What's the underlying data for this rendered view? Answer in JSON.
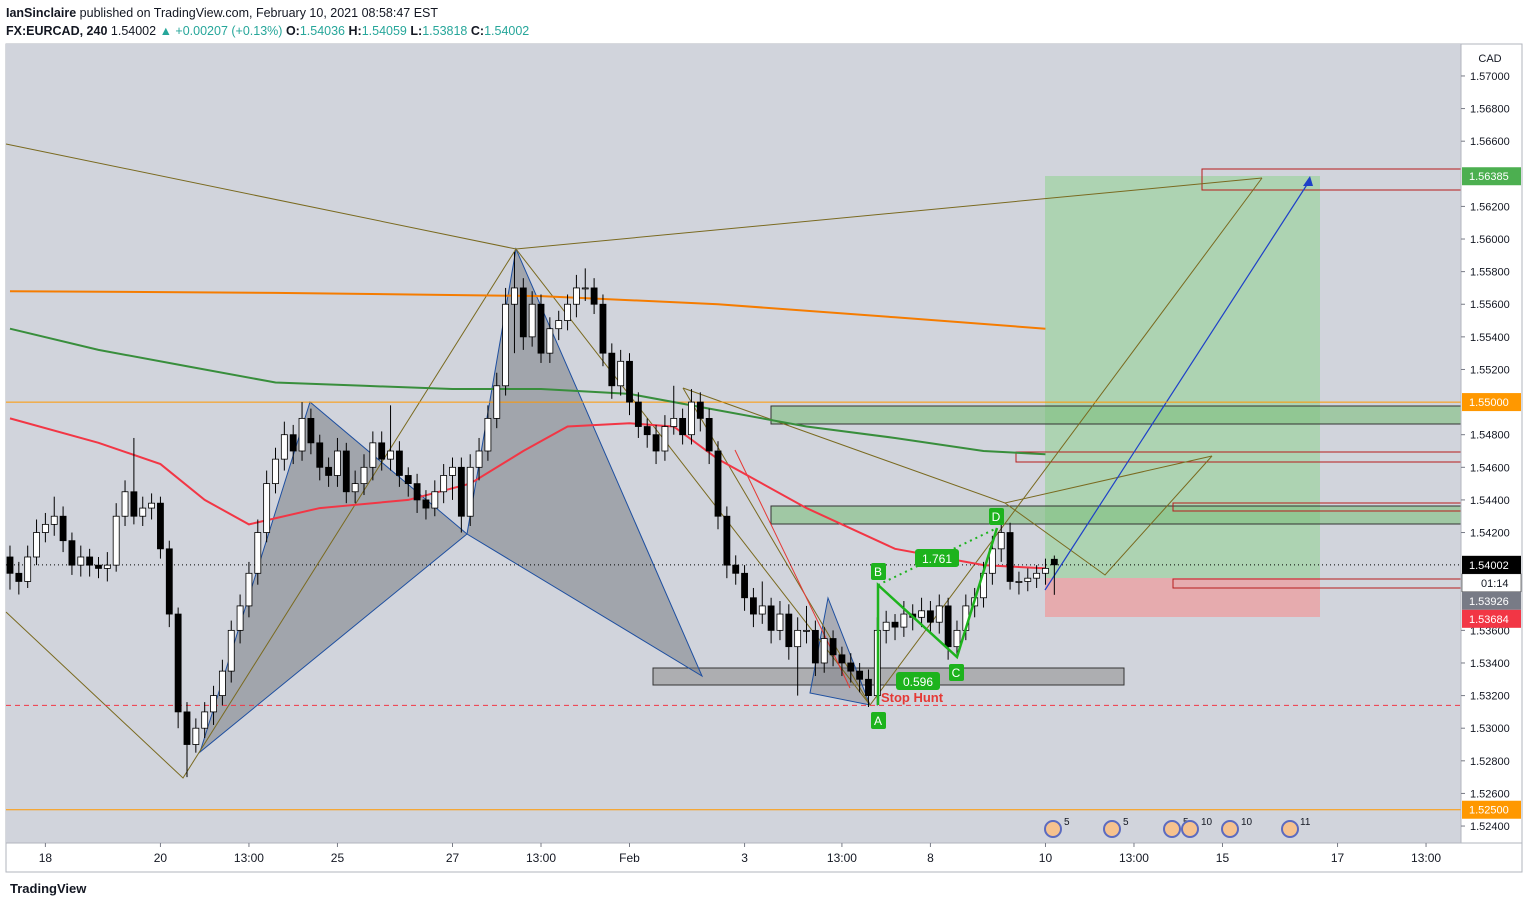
{
  "header": {
    "author": "IanSinclaire",
    "published": "published on TradingView.com, February 10, 2021 08:58:47 EST",
    "symbol": "FX:EURCAD, 240",
    "last": "1.54002",
    "change": "▲ +0.00207 (+0.13%)",
    "open_label": "O:",
    "open": "1.54036",
    "high_label": "H:",
    "high": "1.54059",
    "low_label": "L:",
    "low": "1.53818",
    "close_label": "C:",
    "close": "1.54002"
  },
  "footer": {
    "brand": "TradingView"
  },
  "chart_data": {
    "type": "candlestick",
    "y_axis_label": "CAD",
    "ylim": [
      1.52296,
      1.57196
    ],
    "xlim": [
      -0.45,
      163.95
    ],
    "yticks": [
      {
        "value": 1.57,
        "label": "1.57000"
      },
      {
        "value": 1.568,
        "label": "1.56800"
      },
      {
        "value": 1.566,
        "label": "1.56600"
      },
      {
        "value": 1.562,
        "label": "1.56200"
      },
      {
        "value": 1.56,
        "label": "1.56000"
      },
      {
        "value": 1.558,
        "label": "1.55800"
      },
      {
        "value": 1.556,
        "label": "1.55600"
      },
      {
        "value": 1.554,
        "label": "1.55400"
      },
      {
        "value": 1.552,
        "label": "1.55200"
      },
      {
        "value": 1.548,
        "label": "1.54800"
      },
      {
        "value": 1.546,
        "label": "1.54600"
      },
      {
        "value": 1.544,
        "label": "1.54400"
      },
      {
        "value": 1.542,
        "label": "1.54200"
      },
      {
        "value": 1.536,
        "label": "1.53600"
      },
      {
        "value": 1.534,
        "label": "1.53400"
      },
      {
        "value": 1.532,
        "label": "1.53200"
      },
      {
        "value": 1.53,
        "label": "1.53000"
      },
      {
        "value": 1.528,
        "label": "1.52800"
      },
      {
        "value": 1.526,
        "label": "1.52600"
      },
      {
        "value": 1.524,
        "label": "1.52400"
      }
    ],
    "xticks": [
      {
        "value": 4,
        "label": "18"
      },
      {
        "value": 17,
        "label": "20"
      },
      {
        "value": 27,
        "label": "13:00"
      },
      {
        "value": 37,
        "label": "25"
      },
      {
        "value": 50,
        "label": "27"
      },
      {
        "value": 60,
        "label": "13:00"
      },
      {
        "value": 70,
        "label": "Feb"
      },
      {
        "value": 83,
        "label": "3"
      },
      {
        "value": 94,
        "label": "13:00"
      },
      {
        "value": 104,
        "label": "8"
      },
      {
        "value": 117,
        "label": "10"
      },
      {
        "value": 127,
        "label": "13:00"
      },
      {
        "value": 137,
        "label": "15"
      },
      {
        "value": 150,
        "label": "17"
      },
      {
        "value": 160,
        "label": "13:00"
      }
    ],
    "up_color": "#ffffff",
    "down_color": "#000000",
    "ohlc": [
      [
        1.5405,
        1.5412,
        1.5385,
        1.5395
      ],
      [
        1.5395,
        1.5402,
        1.5382,
        1.539
      ],
      [
        1.539,
        1.5412,
        1.5386,
        1.5405
      ],
      [
        1.5405,
        1.5428,
        1.54,
        1.542
      ],
      [
        1.542,
        1.5432,
        1.5414,
        1.5425
      ],
      [
        1.5425,
        1.5442,
        1.5418,
        1.543
      ],
      [
        1.543,
        1.5436,
        1.5408,
        1.5415
      ],
      [
        1.5415,
        1.542,
        1.5394,
        1.54
      ],
      [
        1.54,
        1.5412,
        1.5393,
        1.5405
      ],
      [
        1.5405,
        1.541,
        1.5393,
        1.54
      ],
      [
        1.54,
        1.5405,
        1.5392,
        1.5398
      ],
      [
        1.5398,
        1.5408,
        1.539,
        1.54
      ],
      [
        1.54,
        1.5438,
        1.5396,
        1.543
      ],
      [
        1.543,
        1.5452,
        1.5424,
        1.5445
      ],
      [
        1.5445,
        1.5478,
        1.5425,
        1.543
      ],
      [
        1.543,
        1.5442,
        1.5424,
        1.5435
      ],
      [
        1.5435,
        1.5444,
        1.5428,
        1.5438
      ],
      [
        1.5438,
        1.5442,
        1.5404,
        1.541
      ],
      [
        1.541,
        1.5415,
        1.5362,
        1.537
      ],
      [
        1.537,
        1.5374,
        1.53,
        1.531
      ],
      [
        1.531,
        1.5316,
        1.527,
        1.529
      ],
      [
        1.529,
        1.5306,
        1.5285,
        1.53
      ],
      [
        1.53,
        1.5316,
        1.5294,
        1.531
      ],
      [
        1.531,
        1.5326,
        1.5302,
        1.532
      ],
      [
        1.532,
        1.5342,
        1.5314,
        1.5335
      ],
      [
        1.5335,
        1.5366,
        1.5328,
        1.536
      ],
      [
        1.536,
        1.5382,
        1.5352,
        1.5375
      ],
      [
        1.5375,
        1.5402,
        1.5368,
        1.5395
      ],
      [
        1.5395,
        1.5428,
        1.5388,
        1.542
      ],
      [
        1.542,
        1.5458,
        1.5414,
        1.545
      ],
      [
        1.545,
        1.5472,
        1.5444,
        1.5465
      ],
      [
        1.5465,
        1.5488,
        1.5458,
        1.548
      ],
      [
        1.548,
        1.5486,
        1.5462,
        1.547
      ],
      [
        1.547,
        1.55,
        1.5464,
        1.549
      ],
      [
        1.549,
        1.5496,
        1.5468,
        1.5475
      ],
      [
        1.5475,
        1.548,
        1.5452,
        1.546
      ],
      [
        1.546,
        1.5466,
        1.5448,
        1.5455
      ],
      [
        1.5455,
        1.5478,
        1.5448,
        1.547
      ],
      [
        1.547,
        1.5475,
        1.5438,
        1.5445
      ],
      [
        1.5445,
        1.5458,
        1.5438,
        1.545
      ],
      [
        1.545,
        1.5468,
        1.5443,
        1.546
      ],
      [
        1.546,
        1.5482,
        1.5452,
        1.5475
      ],
      [
        1.5475,
        1.5482,
        1.5458,
        1.5465
      ],
      [
        1.5465,
        1.5498,
        1.5458,
        1.547
      ],
      [
        1.547,
        1.5476,
        1.5448,
        1.5455
      ],
      [
        1.5455,
        1.546,
        1.5442,
        1.545
      ],
      [
        1.545,
        1.5456,
        1.5432,
        1.544
      ],
      [
        1.544,
        1.5446,
        1.5428,
        1.5435
      ],
      [
        1.5435,
        1.5452,
        1.543,
        1.5445
      ],
      [
        1.5445,
        1.5462,
        1.5438,
        1.5455
      ],
      [
        1.5455,
        1.5466,
        1.544,
        1.546
      ],
      [
        1.546,
        1.5466,
        1.542,
        1.543
      ],
      [
        1.543,
        1.5468,
        1.5424,
        1.546
      ],
      [
        1.546,
        1.5478,
        1.5452,
        1.547
      ],
      [
        1.547,
        1.5498,
        1.5464,
        1.549
      ],
      [
        1.549,
        1.5518,
        1.5484,
        1.551
      ],
      [
        1.551,
        1.557,
        1.5504,
        1.556
      ],
      [
        1.556,
        1.5592,
        1.553,
        1.557
      ],
      [
        1.557,
        1.5576,
        1.5532,
        1.554
      ],
      [
        1.554,
        1.5568,
        1.5534,
        1.556
      ],
      [
        1.556,
        1.5566,
        1.5524,
        1.553
      ],
      [
        1.553,
        1.5552,
        1.5524,
        1.5545
      ],
      [
        1.5545,
        1.5556,
        1.5538,
        1.555
      ],
      [
        1.555,
        1.5566,
        1.5544,
        1.556
      ],
      [
        1.556,
        1.5578,
        1.5552,
        1.557
      ],
      [
        1.557,
        1.5582,
        1.5562,
        1.557
      ],
      [
        1.557,
        1.5576,
        1.5554,
        1.556
      ],
      [
        1.556,
        1.5566,
        1.5522,
        1.553
      ],
      [
        1.553,
        1.5536,
        1.5502,
        1.551
      ],
      [
        1.551,
        1.5532,
        1.5504,
        1.5525
      ],
      [
        1.5525,
        1.553,
        1.5492,
        1.55
      ],
      [
        1.55,
        1.5506,
        1.5478,
        1.5485
      ],
      [
        1.5485,
        1.549,
        1.5472,
        1.548
      ],
      [
        1.548,
        1.5486,
        1.5462,
        1.547
      ],
      [
        1.547,
        1.5492,
        1.5464,
        1.5485
      ],
      [
        1.5485,
        1.551,
        1.548,
        1.549
      ],
      [
        1.549,
        1.5496,
        1.5474,
        1.548
      ],
      [
        1.548,
        1.5508,
        1.5474,
        1.55
      ],
      [
        1.55,
        1.5506,
        1.5482,
        1.549
      ],
      [
        1.549,
        1.5496,
        1.5462,
        1.547
      ],
      [
        1.547,
        1.5476,
        1.5422,
        1.543
      ],
      [
        1.543,
        1.5436,
        1.5392,
        1.54
      ],
      [
        1.54,
        1.5406,
        1.5388,
        1.5395
      ],
      [
        1.5395,
        1.54,
        1.5372,
        1.538
      ],
      [
        1.538,
        1.5386,
        1.5362,
        1.537
      ],
      [
        1.537,
        1.539,
        1.5364,
        1.5375
      ],
      [
        1.5375,
        1.538,
        1.5352,
        1.536
      ],
      [
        1.536,
        1.5378,
        1.5354,
        1.537
      ],
      [
        1.537,
        1.5376,
        1.5342,
        1.535
      ],
      [
        1.535,
        1.5368,
        1.532,
        1.536
      ],
      [
        1.536,
        1.5375,
        1.5352,
        1.536
      ],
      [
        1.536,
        1.5366,
        1.5332,
        1.534
      ],
      [
        1.534,
        1.5362,
        1.5334,
        1.5355
      ],
      [
        1.5355,
        1.536,
        1.5338,
        1.5345
      ],
      [
        1.5345,
        1.535,
        1.5332,
        1.534
      ],
      [
        1.534,
        1.5346,
        1.5328,
        1.5335
      ],
      [
        1.5335,
        1.534,
        1.5322,
        1.533
      ],
      [
        1.533,
        1.5336,
        1.5313,
        1.532
      ],
      [
        1.532,
        1.5368,
        1.5314,
        1.536
      ],
      [
        1.536,
        1.5372,
        1.5352,
        1.5365
      ],
      [
        1.5365,
        1.537,
        1.5354,
        1.5362
      ],
      [
        1.5362,
        1.5378,
        1.5356,
        1.537
      ],
      [
        1.537,
        1.5376,
        1.536,
        1.5368
      ],
      [
        1.5368,
        1.538,
        1.5362,
        1.5372
      ],
      [
        1.5372,
        1.5378,
        1.5358,
        1.5365
      ],
      [
        1.5365,
        1.5382,
        1.5358,
        1.5375
      ],
      [
        1.5375,
        1.538,
        1.5342,
        1.535
      ],
      [
        1.535,
        1.5366,
        1.5344,
        1.536
      ],
      [
        1.536,
        1.5382,
        1.5354,
        1.5375
      ],
      [
        1.5375,
        1.5386,
        1.5368,
        1.538
      ],
      [
        1.538,
        1.5402,
        1.5374,
        1.5395
      ],
      [
        1.5395,
        1.5418,
        1.5388,
        1.541
      ],
      [
        1.541,
        1.5425,
        1.5402,
        1.542
      ],
      [
        1.542,
        1.5426,
        1.5385,
        1.539
      ],
      [
        1.539,
        1.5396,
        1.5382,
        1.539
      ],
      [
        1.539,
        1.5398,
        1.5384,
        1.5392
      ],
      [
        1.5392,
        1.54,
        1.5386,
        1.5395
      ],
      [
        1.5395,
        1.5404,
        1.5388,
        1.5398
      ],
      [
        1.54036,
        1.54059,
        1.53818,
        1.54002
      ]
    ],
    "series": [
      {
        "color": "#f57c00",
        "x": [
          0,
          30,
          60,
          80,
          100,
          117
        ],
        "values": [
          1.5568,
          1.5567,
          1.5565,
          1.556,
          1.5552,
          1.5545
        ]
      },
      {
        "color": "#388e3c",
        "x": [
          0,
          10,
          20,
          30,
          40,
          50,
          60,
          70,
          80,
          90,
          100,
          110,
          117
        ],
        "values": [
          1.5545,
          1.5532,
          1.5522,
          1.5512,
          1.551,
          1.5508,
          1.5508,
          1.5505,
          1.5495,
          1.5485,
          1.5478,
          1.547,
          1.5468
        ]
      },
      {
        "color": "#f23645",
        "x": [
          0,
          10,
          17,
          22,
          27,
          35,
          45,
          52,
          58,
          63,
          70,
          75,
          80,
          90,
          100,
          110,
          117
        ],
        "values": [
          1.549,
          1.5475,
          1.5462,
          1.544,
          1.5425,
          1.5435,
          1.544,
          1.545,
          1.547,
          1.5485,
          1.5487,
          1.5485,
          1.5465,
          1.5435,
          1.541,
          1.54,
          1.5398
        ]
      }
    ],
    "levels": [
      {
        "value": 1.56385,
        "label": "1.56385",
        "color": "#4caf50",
        "line": "none"
      },
      {
        "value": 1.55,
        "label": "1.55000",
        "color": "#ff9800",
        "line": "solid"
      },
      {
        "value": 1.54002,
        "label": "1.54002",
        "color": "#000000",
        "line": "dotted"
      },
      {
        "value": 1.53926,
        "label": "1.53926",
        "color": "#787b86",
        "line": "none"
      },
      {
        "value": 1.53684,
        "label": "1.53684",
        "color": "#f23645",
        "line": "none"
      },
      {
        "value": 1.5314,
        "color": "#f23645",
        "line": "dashed"
      },
      {
        "value": 1.525,
        "label": "1.52500",
        "color": "#ff9800",
        "line": "solid"
      }
    ],
    "countdown": "01:14",
    "annotations": {
      "a": "A",
      "b": "B",
      "c": "C",
      "d": "D",
      "ratio_bd": "1.761",
      "ratio_ac": "0.596",
      "stop": "Stop Hunt"
    },
    "events": [
      "5",
      "5",
      "5",
      "10",
      "10",
      "11"
    ]
  }
}
